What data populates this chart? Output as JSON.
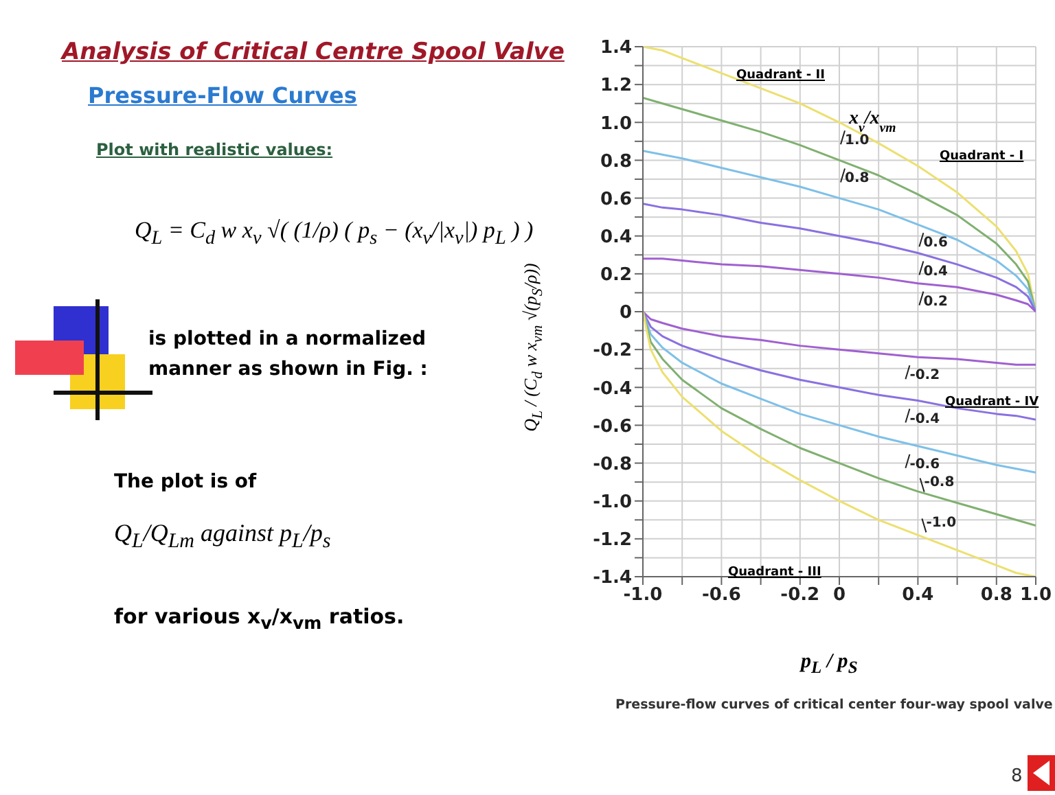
{
  "chart_data": {
    "type": "line",
    "title": "Analysis of Critical Centre Spool Valve",
    "subtitle": "Pressure-Flow Curves",
    "xlabel": "p$_{L}$ / p$_{S}$",
    "ylabel": "Q$_{L}$ / (C$_{d}$ w x$_{vm}$ √(p$_{S}$/ρ))",
    "legend_title": "x$_{v}$/x$_{vm}$",
    "annotations": [
      "Plot with realistic values:",
      "Q$_{L}$ = C$_{d}$ w x$_{v}$ √( (1/ρ) ( p$_{s}$ − (x$_{v}$/|x$_{v}$|) p$_{L}$ ) )",
      "is plotted in a normalized manner as shown in Fig. :",
      "The plot is of",
      "Q$_{L}$/Q$_{Lm}$ against p$_{L}$/p$_{s}$",
      "for various x$_{v}$/x$_{vm}$ ratios.",
      "Quadrant - I",
      "Quadrant - II",
      "Quadrant - III",
      "Quadrant - IV",
      "Pressure-flow curves of critical center four-way spool valve",
      "8"
    ],
    "series": [
      {
        "name": "1.0",
        "color": "#ece070",
        "x": [
          -1,
          -0.9,
          -0.8,
          -0.6,
          -0.4,
          -0.2,
          0,
          0.2,
          0.4,
          0.6,
          0.8,
          0.9,
          0.96,
          1
        ],
        "values": [
          1.4,
          1.38,
          1.34,
          1.26,
          1.18,
          1.1,
          1.0,
          0.89,
          0.77,
          0.63,
          0.45,
          0.32,
          0.2,
          0
        ]
      },
      {
        "name": "0.8",
        "color": "#80b070",
        "x": [
          -1,
          -0.9,
          -0.8,
          -0.6,
          -0.4,
          -0.2,
          0,
          0.2,
          0.4,
          0.6,
          0.8,
          0.9,
          0.96,
          1
        ],
        "values": [
          1.13,
          1.1,
          1.07,
          1.01,
          0.95,
          0.88,
          0.8,
          0.72,
          0.62,
          0.51,
          0.36,
          0.25,
          0.16,
          0
        ]
      },
      {
        "name": "0.6",
        "color": "#7ec0e8",
        "x": [
          -1,
          -0.9,
          -0.8,
          -0.6,
          -0.4,
          -0.2,
          0,
          0.2,
          0.4,
          0.6,
          0.8,
          0.9,
          0.96,
          1
        ],
        "values": [
          0.85,
          0.83,
          0.81,
          0.76,
          0.71,
          0.66,
          0.6,
          0.54,
          0.46,
          0.38,
          0.27,
          0.19,
          0.12,
          0
        ]
      },
      {
        "name": "0.4",
        "color": "#8a70e0",
        "x": [
          -1,
          -0.9,
          -0.8,
          -0.6,
          -0.4,
          -0.2,
          0,
          0.2,
          0.4,
          0.6,
          0.8,
          0.9,
          0.96,
          1
        ],
        "values": [
          0.57,
          0.55,
          0.54,
          0.51,
          0.47,
          0.44,
          0.4,
          0.36,
          0.31,
          0.25,
          0.18,
          0.13,
          0.08,
          0
        ]
      },
      {
        "name": "0.2",
        "color": "#a060d0",
        "x": [
          -1,
          -0.9,
          -0.8,
          -0.6,
          -0.4,
          -0.2,
          0,
          0.2,
          0.4,
          0.6,
          0.8,
          0.9,
          0.96,
          1
        ],
        "values": [
          0.28,
          0.28,
          0.27,
          0.25,
          0.24,
          0.22,
          0.2,
          0.18,
          0.15,
          0.13,
          0.09,
          0.06,
          0.04,
          0
        ]
      },
      {
        "name": "-0.2",
        "color": "#a060d0",
        "x": [
          -1,
          -0.96,
          -0.9,
          -0.8,
          -0.6,
          -0.4,
          -0.2,
          0,
          0.2,
          0.4,
          0.6,
          0.8,
          0.9,
          1
        ],
        "values": [
          0,
          -0.04,
          -0.06,
          -0.09,
          -0.13,
          -0.15,
          -0.18,
          -0.2,
          -0.22,
          -0.24,
          -0.25,
          -0.27,
          -0.28,
          -0.28
        ]
      },
      {
        "name": "-0.4",
        "color": "#8a70e0",
        "x": [
          -1,
          -0.96,
          -0.9,
          -0.8,
          -0.6,
          -0.4,
          -0.2,
          0,
          0.2,
          0.4,
          0.6,
          0.8,
          0.9,
          1
        ],
        "values": [
          0,
          -0.08,
          -0.13,
          -0.18,
          -0.25,
          -0.31,
          -0.36,
          -0.4,
          -0.44,
          -0.47,
          -0.51,
          -0.54,
          -0.55,
          -0.57
        ]
      },
      {
        "name": "-0.6",
        "color": "#7ec0e8",
        "x": [
          -1,
          -0.96,
          -0.9,
          -0.8,
          -0.6,
          -0.4,
          -0.2,
          0,
          0.2,
          0.4,
          0.6,
          0.8,
          0.9,
          1
        ],
        "values": [
          0,
          -0.12,
          -0.19,
          -0.27,
          -0.38,
          -0.46,
          -0.54,
          -0.6,
          -0.66,
          -0.71,
          -0.76,
          -0.81,
          -0.83,
          -0.85
        ]
      },
      {
        "name": "-0.8",
        "color": "#80b070",
        "x": [
          -1,
          -0.96,
          -0.9,
          -0.8,
          -0.6,
          -0.4,
          -0.2,
          0,
          0.2,
          0.4,
          0.6,
          0.8,
          0.9,
          1
        ],
        "values": [
          0,
          -0.16,
          -0.25,
          -0.36,
          -0.51,
          -0.62,
          -0.72,
          -0.8,
          -0.88,
          -0.95,
          -1.01,
          -1.07,
          -1.1,
          -1.13
        ]
      },
      {
        "name": "-1.0",
        "color": "#ece070",
        "x": [
          -1,
          -0.96,
          -0.9,
          -0.8,
          -0.6,
          -0.4,
          -0.2,
          0,
          0.2,
          0.4,
          0.6,
          0.8,
          0.9,
          1
        ],
        "values": [
          0,
          -0.2,
          -0.32,
          -0.45,
          -0.63,
          -0.77,
          -0.89,
          -1.0,
          -1.1,
          -1.18,
          -1.26,
          -1.34,
          -1.38,
          -1.4
        ]
      }
    ],
    "xlim": [
      -1,
      1
    ],
    "xticks": [
      {
        "value": -1,
        "label": "-1.0"
      },
      {
        "value": -0.8,
        "label": null
      },
      -0.6,
      {
        "value": -0.4,
        "label": null
      },
      -0.2,
      0,
      {
        "value": 0.2,
        "label": null
      },
      0.4,
      {
        "value": 0.6,
        "label": null
      },
      0.8,
      {
        "value": 1,
        "label": "1.0"
      }
    ],
    "ylim": [
      -1.4,
      1.4
    ],
    "yticks": [
      -1.4,
      {
        "value": -1.3,
        "label": null
      },
      -1.2,
      {
        "value": -1.1,
        "label": null
      },
      {
        "value": -1,
        "label": "-1.0"
      },
      {
        "value": -0.9,
        "label": null
      },
      -0.8,
      {
        "value": -0.7,
        "label": null
      },
      -0.6,
      {
        "value": -0.5,
        "label": null
      },
      -0.4,
      {
        "value": -0.3,
        "label": null
      },
      -0.2,
      {
        "value": -0.1,
        "label": null
      },
      0,
      {
        "value": 0.1,
        "label": null
      },
      0.2,
      {
        "value": 0.3,
        "label": null
      },
      0.4,
      {
        "value": 0.5,
        "label": null
      },
      0.6,
      {
        "value": 0.7,
        "label": null
      },
      0.8,
      {
        "value": 0.9,
        "label": null
      },
      {
        "value": 1,
        "label": "1.0"
      },
      {
        "value": 1.1,
        "label": null
      },
      1.2,
      {
        "value": 1.3,
        "label": null
      },
      1.4
    ],
    "grid": true,
    "legend": false,
    "marker": "none",
    "line_style": "solid"
  }
}
